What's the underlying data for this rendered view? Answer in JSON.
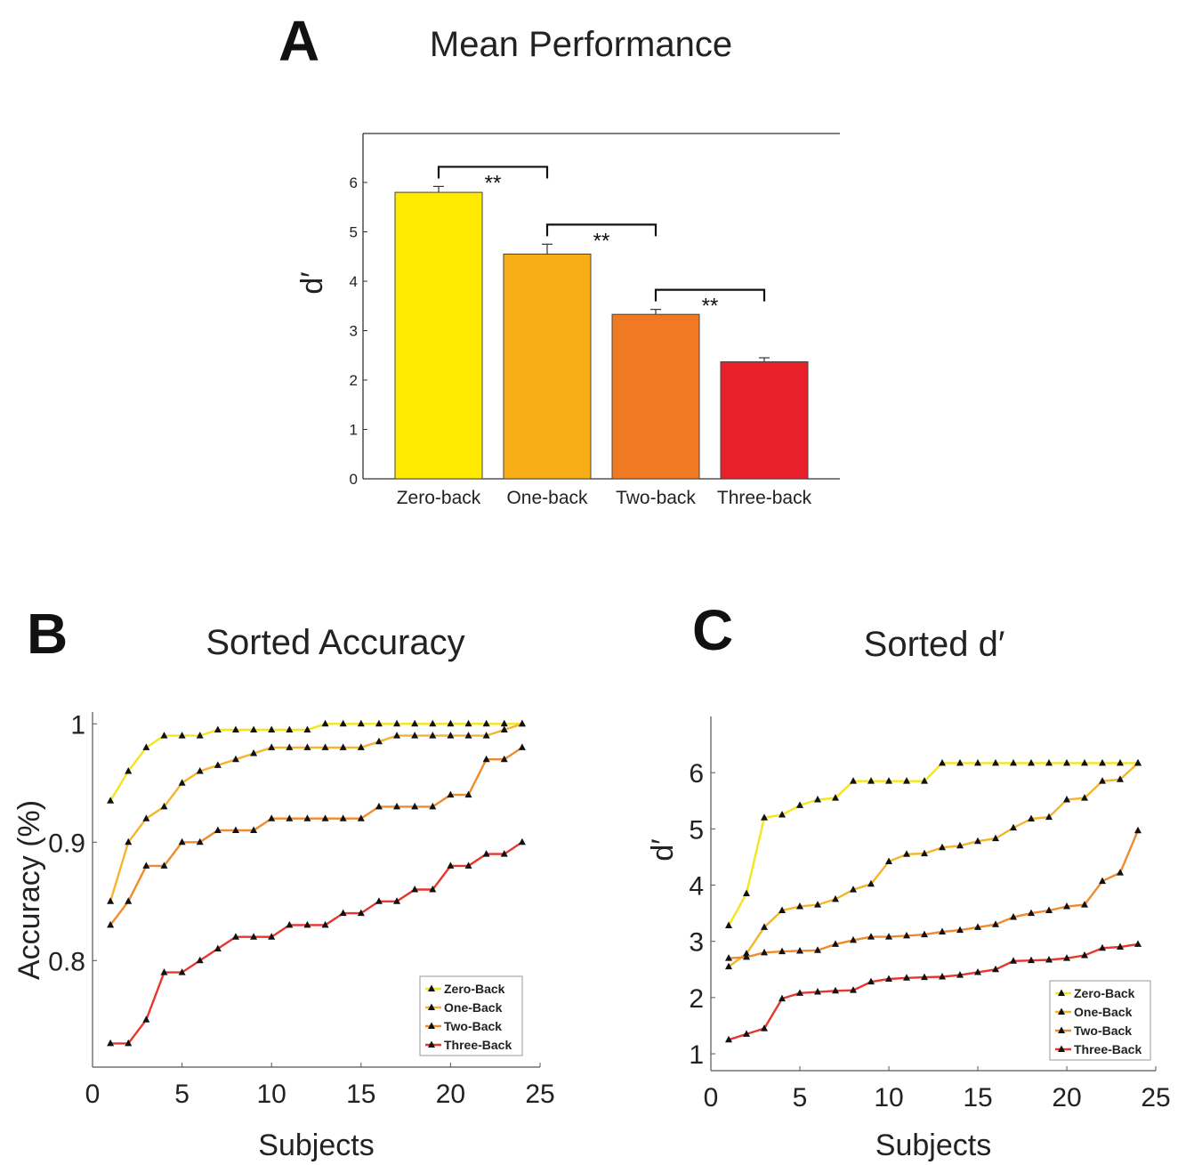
{
  "chart_data": [
    {
      "id": "A",
      "type": "bar",
      "panel_label": "A",
      "title": "Mean Performance",
      "xlabel": "",
      "ylabel": "d′",
      "categories": [
        "Zero-back",
        "One-back",
        "Two-back",
        "Three-back"
      ],
      "values": [
        5.8,
        4.55,
        3.33,
        2.37
      ],
      "errors": [
        0.12,
        0.2,
        0.1,
        0.08
      ],
      "colors": [
        "#FFEA00",
        "#F7AE17",
        "#F07A22",
        "#E8202A"
      ],
      "yticks": [
        0,
        1,
        2,
        3,
        4,
        5,
        6
      ],
      "ylim": [
        0,
        7
      ],
      "significance": [
        {
          "from": 0,
          "to": 1,
          "label": "**"
        },
        {
          "from": 1,
          "to": 2,
          "label": "**"
        },
        {
          "from": 2,
          "to": 3,
          "label": "**"
        }
      ]
    },
    {
      "id": "B",
      "type": "line",
      "panel_label": "B",
      "title": "Sorted Accuracy",
      "xlabel": "Subjects",
      "ylabel": "Accuracy (%)",
      "xlim": [
        0,
        25
      ],
      "ylim": [
        0.71,
        1.01
      ],
      "xticks": [
        0,
        5,
        10,
        15,
        20,
        25
      ],
      "yticks": [
        0.8,
        0.9,
        1
      ],
      "ytick_labels": [
        "0.8",
        "0.9",
        "1"
      ],
      "legend_position": "bottom-right",
      "x": [
        1,
        2,
        3,
        4,
        5,
        6,
        7,
        8,
        9,
        10,
        11,
        12,
        13,
        14,
        15,
        16,
        17,
        18,
        19,
        20,
        21,
        22,
        23,
        24
      ],
      "series": [
        {
          "name": "Zero-Back",
          "color": "#F5E51B",
          "values": [
            0.935,
            0.96,
            0.98,
            0.99,
            0.99,
            0.99,
            0.995,
            0.995,
            0.995,
            0.995,
            0.995,
            0.995,
            1,
            1,
            1,
            1,
            1,
            1,
            1,
            1,
            1,
            1,
            1,
            1
          ]
        },
        {
          "name": "One-Back",
          "color": "#F5B52A",
          "values": [
            0.85,
            0.9,
            0.92,
            0.93,
            0.95,
            0.96,
            0.965,
            0.97,
            0.975,
            0.98,
            0.98,
            0.98,
            0.98,
            0.98,
            0.98,
            0.985,
            0.99,
            0.99,
            0.99,
            0.99,
            0.99,
            0.99,
            0.995,
            1
          ]
        },
        {
          "name": "Two-Back",
          "color": "#F08A2C",
          "values": [
            0.83,
            0.85,
            0.88,
            0.88,
            0.9,
            0.9,
            0.91,
            0.91,
            0.91,
            0.92,
            0.92,
            0.92,
            0.92,
            0.92,
            0.92,
            0.93,
            0.93,
            0.93,
            0.93,
            0.94,
            0.94,
            0.97,
            0.97,
            0.98
          ]
        },
        {
          "name": "Three-Back",
          "color": "#E8352E",
          "values": [
            0.73,
            0.73,
            0.75,
            0.79,
            0.79,
            0.8,
            0.81,
            0.82,
            0.82,
            0.82,
            0.83,
            0.83,
            0.83,
            0.84,
            0.84,
            0.85,
            0.85,
            0.86,
            0.86,
            0.88,
            0.88,
            0.89,
            0.89,
            0.9
          ]
        }
      ]
    },
    {
      "id": "C",
      "type": "line",
      "panel_label": "C",
      "title": "Sorted d′",
      "xlabel": "Subjects",
      "ylabel": "d′",
      "xlim": [
        0,
        25
      ],
      "ylim": [
        0.7,
        7
      ],
      "xticks": [
        0,
        5,
        10,
        15,
        20,
        25
      ],
      "yticks": [
        1,
        2,
        3,
        4,
        5,
        6
      ],
      "ytick_labels": [
        "1",
        "2",
        "3",
        "4",
        "5",
        "6"
      ],
      "legend_position": "bottom-right",
      "x": [
        1,
        2,
        3,
        4,
        5,
        6,
        7,
        8,
        9,
        10,
        11,
        12,
        13,
        14,
        15,
        16,
        17,
        18,
        19,
        20,
        21,
        22,
        23,
        24
      ],
      "series": [
        {
          "name": "Zero-Back",
          "color": "#F5E51B",
          "values": [
            3.28,
            3.85,
            5.2,
            5.25,
            5.42,
            5.52,
            5.55,
            5.85,
            5.85,
            5.85,
            5.85,
            5.85,
            6.17,
            6.17,
            6.17,
            6.17,
            6.17,
            6.17,
            6.17,
            6.17,
            6.17,
            6.17,
            6.17,
            6.17
          ]
        },
        {
          "name": "One-Back",
          "color": "#F5B52A",
          "values": [
            2.55,
            2.78,
            3.25,
            3.55,
            3.62,
            3.65,
            3.75,
            3.92,
            4.02,
            4.42,
            4.55,
            4.56,
            4.67,
            4.7,
            4.78,
            4.83,
            5.02,
            5.18,
            5.21,
            5.52,
            5.55,
            5.85,
            5.88,
            6.17
          ]
        },
        {
          "name": "Two-Back",
          "color": "#F08A2C",
          "values": [
            2.7,
            2.72,
            2.8,
            2.82,
            2.83,
            2.84,
            2.95,
            3.02,
            3.08,
            3.08,
            3.1,
            3.12,
            3.17,
            3.2,
            3.25,
            3.3,
            3.43,
            3.5,
            3.55,
            3.62,
            3.65,
            4.07,
            4.22,
            4.97
          ]
        },
        {
          "name": "Three-Back",
          "color": "#E8352E",
          "values": [
            1.25,
            1.35,
            1.45,
            1.98,
            2.08,
            2.1,
            2.12,
            2.13,
            2.28,
            2.33,
            2.35,
            2.36,
            2.37,
            2.4,
            2.45,
            2.5,
            2.65,
            2.66,
            2.67,
            2.7,
            2.75,
            2.88,
            2.9,
            2.95
          ]
        }
      ]
    }
  ]
}
